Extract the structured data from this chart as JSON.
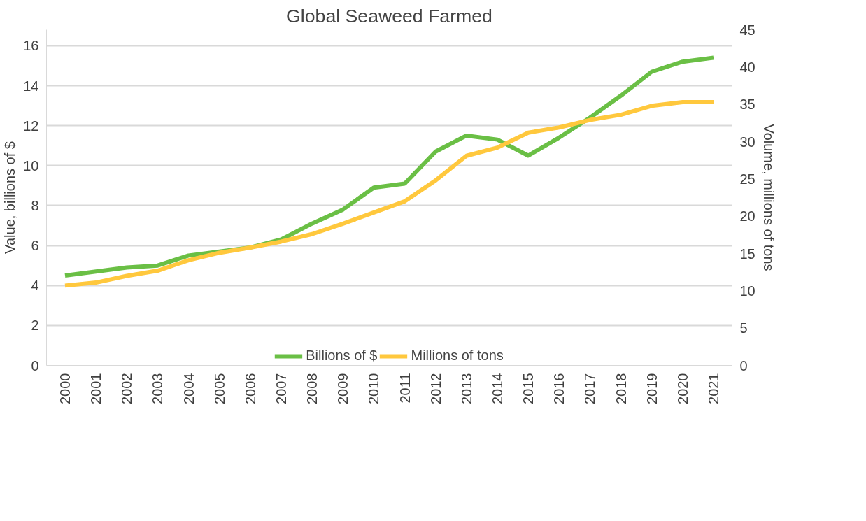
{
  "chart_data": {
    "type": "line",
    "title": "Global Seaweed Farmed",
    "ylabel": "Value, billions of $",
    "y2label": "Volume, millions of tons",
    "categories": [
      "2000",
      "2001",
      "2002",
      "2003",
      "2004",
      "2005",
      "2006",
      "2007",
      "2008",
      "2009",
      "2010",
      "2011",
      "2012",
      "2013",
      "2014",
      "2015",
      "2016",
      "2017",
      "2018",
      "2019",
      "2020",
      "2021"
    ],
    "series": [
      {
        "name": "Billions of $",
        "color": "#6abf45",
        "values": [
          4.5,
          4.7,
          4.9,
          5.0,
          5.5,
          5.7,
          5.9,
          6.3,
          7.1,
          7.8,
          8.9,
          9.1,
          10.7,
          11.5,
          11.3,
          10.5,
          11.4,
          12.4,
          13.5,
          14.7,
          15.2,
          15.4
        ]
      },
      {
        "name": "Millions of tons",
        "color": "#ffc83d",
        "axis": "y2",
        "values": [
          10.7,
          11.1,
          12.0,
          12.7,
          14.1,
          15.1,
          15.8,
          16.6,
          17.6,
          19.0,
          20.5,
          22.0,
          24.8,
          28.1,
          29.2,
          31.2,
          31.9,
          32.9,
          33.6,
          34.8,
          35.3,
          35.3
        ]
      }
    ],
    "ylim": [
      0,
      16.8
    ],
    "yticks": [
      0,
      2,
      4,
      6,
      8,
      10,
      12,
      14,
      16
    ],
    "y2lim": [
      0,
      45
    ],
    "y2ticks": [
      0,
      5,
      10,
      15,
      20,
      25,
      30,
      35,
      40,
      45
    ],
    "grid": "y",
    "legend": "bottom",
    "marker": "none",
    "line_style": "solid"
  }
}
